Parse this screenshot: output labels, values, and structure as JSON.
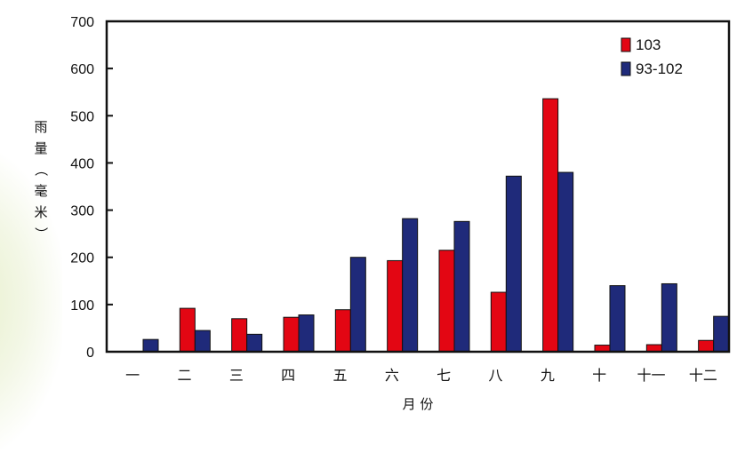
{
  "colors": {
    "series_103": "#e30613",
    "series_93_102": "#1f2a7a",
    "axis": "#111111"
  },
  "chart_data": {
    "type": "bar",
    "categories": [
      "一",
      "二",
      "三",
      "四",
      "五",
      "六",
      "七",
      "八",
      "九",
      "十",
      "十一",
      "十二"
    ],
    "series": [
      {
        "name": "103",
        "values": [
          0,
          92,
          70,
          73,
          89,
          193,
          215,
          126,
          536,
          14,
          15,
          24
        ]
      },
      {
        "name": "93-102",
        "values": [
          26,
          45,
          37,
          78,
          200,
          282,
          276,
          372,
          380,
          140,
          144,
          75
        ]
      }
    ],
    "xlabel": "月 份",
    "ylabel": "雨量（毫米）",
    "ylim": [
      0,
      700
    ],
    "yticks": [
      0,
      100,
      200,
      300,
      400,
      500,
      600,
      700
    ],
    "legend_position": "top-right",
    "grid": false
  }
}
